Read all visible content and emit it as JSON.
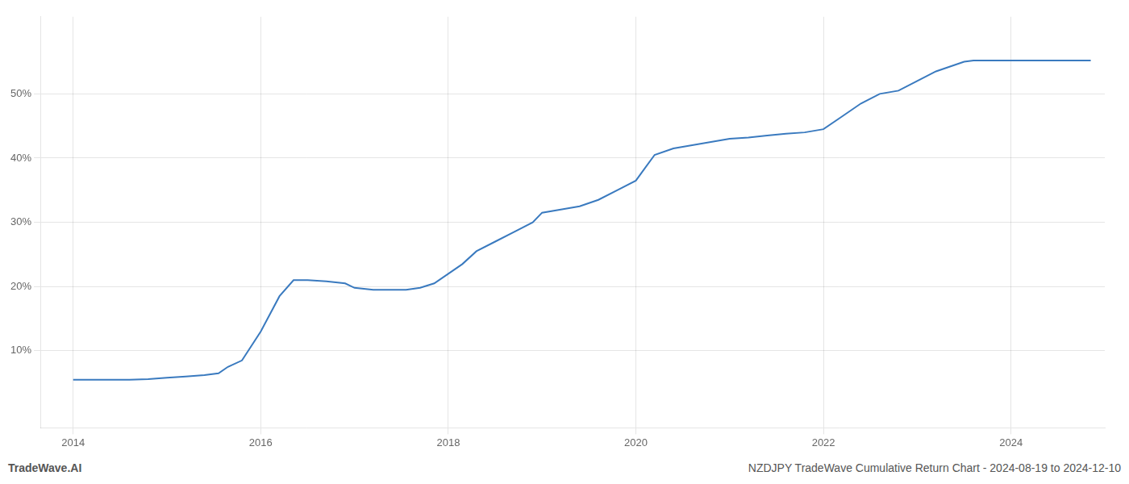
{
  "chart_data": {
    "type": "line",
    "x": [
      2014.0,
      2014.2,
      2014.4,
      2014.6,
      2014.8,
      2015.0,
      2015.2,
      2015.4,
      2015.55,
      2015.65,
      2015.8,
      2016.0,
      2016.2,
      2016.35,
      2016.5,
      2016.7,
      2016.9,
      2017.0,
      2017.2,
      2017.4,
      2017.55,
      2017.7,
      2017.85,
      2018.0,
      2018.15,
      2018.3,
      2018.5,
      2018.7,
      2018.9,
      2019.0,
      2019.2,
      2019.4,
      2019.6,
      2019.8,
      2020.0,
      2020.1,
      2020.2,
      2020.4,
      2020.6,
      2020.8,
      2021.0,
      2021.2,
      2021.4,
      2021.6,
      2021.8,
      2022.0,
      2022.2,
      2022.4,
      2022.6,
      2022.8,
      2023.0,
      2023.2,
      2023.4,
      2023.5,
      2023.6,
      2023.8,
      2024.0,
      2024.3,
      2024.6,
      2024.85
    ],
    "values": [
      5.5,
      5.5,
      5.5,
      5.5,
      5.6,
      5.8,
      6.0,
      6.2,
      6.5,
      7.5,
      8.5,
      13.0,
      18.5,
      21.0,
      21.0,
      20.8,
      20.5,
      19.8,
      19.5,
      19.5,
      19.5,
      19.8,
      20.5,
      22.0,
      23.5,
      25.5,
      27.0,
      28.5,
      30.0,
      31.5,
      32.0,
      32.5,
      33.5,
      35.0,
      36.5,
      38.5,
      40.5,
      41.5,
      42.0,
      42.5,
      43.0,
      43.2,
      43.5,
      43.8,
      44.0,
      44.5,
      46.5,
      48.5,
      50.0,
      50.5,
      52.0,
      53.5,
      54.5,
      55.0,
      55.2,
      55.2,
      55.2,
      55.2,
      55.2,
      55.2
    ],
    "color": "#3a7abf",
    "xlim": [
      2013.65,
      2025.0
    ],
    "ylim": [
      -2,
      62
    ],
    "xticks": [
      2014,
      2016,
      2018,
      2020,
      2022,
      2024
    ],
    "yticks": [
      {
        "value": 10,
        "label": "10%"
      },
      {
        "value": 20,
        "label": "20%"
      },
      {
        "value": 30,
        "label": "30%"
      },
      {
        "value": 40,
        "label": "40%"
      },
      {
        "value": 50,
        "label": "50%"
      }
    ],
    "grid": true,
    "annotations": [
      "TradeWave.AI",
      "NZDJPY TradeWave Cumulative Return Chart - 2024-08-19 to 2024-12-10"
    ]
  }
}
